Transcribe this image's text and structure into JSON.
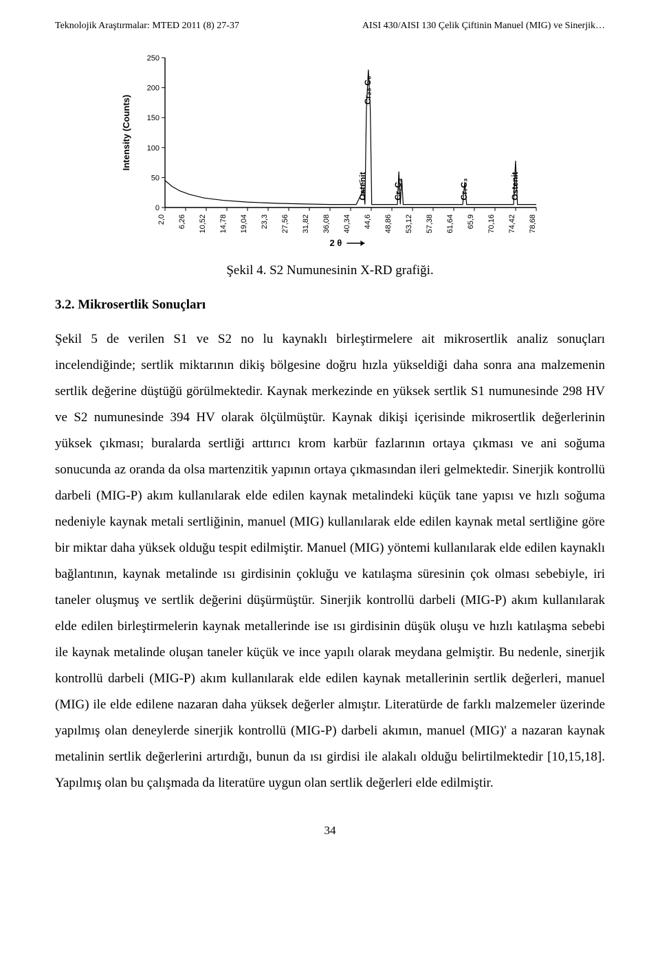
{
  "header": {
    "left": "Teknolojik Araştırmalar: MTED 2011 (8) 27-37",
    "right": "AISI 430/AISI 130 Çelik Çiftinin Manuel (MIG) ve Sinerjik…"
  },
  "chart": {
    "type": "line",
    "ylabel": "Intensity (Counts)",
    "xlabel": "2 θ",
    "xlabel_arrow": "→",
    "ylim": [
      0,
      250
    ],
    "yticks": [
      0,
      50,
      100,
      150,
      200,
      250
    ],
    "xticks": [
      2.0,
      6.26,
      10.52,
      14.78,
      19.04,
      23.3,
      27.56,
      31.82,
      36.08,
      40.34,
      44.6,
      48.86,
      53.12,
      57.38,
      61.64,
      65.9,
      70.16,
      74.42,
      78.68
    ],
    "xtick_labels": [
      "2,0",
      "6,26",
      "10,52",
      "14,78",
      "19,04",
      "23,3",
      "27,56",
      "31,82",
      "36,08",
      "40,34",
      "44,6",
      "48,86",
      "53,12",
      "57,38",
      "61,64",
      "65,9",
      "70,16",
      "74,42",
      "78,68"
    ],
    "data": [
      {
        "x": 2.0,
        "y": 45
      },
      {
        "x": 3.5,
        "y": 35
      },
      {
        "x": 5.0,
        "y": 28
      },
      {
        "x": 7.0,
        "y": 22
      },
      {
        "x": 10.0,
        "y": 16
      },
      {
        "x": 14.0,
        "y": 12
      },
      {
        "x": 19.0,
        "y": 9
      },
      {
        "x": 25.0,
        "y": 7
      },
      {
        "x": 30.0,
        "y": 6
      },
      {
        "x": 36.0,
        "y": 5
      },
      {
        "x": 41.5,
        "y": 5
      },
      {
        "x": 43.0,
        "y": 30
      },
      {
        "x": 43.3,
        "y": 5
      },
      {
        "x": 43.6,
        "y": 165
      },
      {
        "x": 44.0,
        "y": 230
      },
      {
        "x": 44.4,
        "y": 165
      },
      {
        "x": 44.7,
        "y": 5
      },
      {
        "x": 48.0,
        "y": 5
      },
      {
        "x": 50.0,
        "y": 5
      },
      {
        "x": 50.3,
        "y": 60
      },
      {
        "x": 50.6,
        "y": 5
      },
      {
        "x": 50.9,
        "y": 48
      },
      {
        "x": 51.2,
        "y": 5
      },
      {
        "x": 57.0,
        "y": 5
      },
      {
        "x": 63.5,
        "y": 5
      },
      {
        "x": 63.9,
        "y": 42
      },
      {
        "x": 64.3,
        "y": 5
      },
      {
        "x": 70.0,
        "y": 5
      },
      {
        "x": 74.0,
        "y": 5
      },
      {
        "x": 74.4,
        "y": 78
      },
      {
        "x": 74.8,
        "y": 5
      },
      {
        "x": 78.68,
        "y": 5
      }
    ],
    "peaks": [
      {
        "x": 43.0,
        "label": "Ostenit",
        "rotate": true
      },
      {
        "x": 44.0,
        "label": "Cr₂₃ C₆",
        "rotate": true
      },
      {
        "x": 50.3,
        "label": "Cr₇C₃",
        "rotate": true
      },
      {
        "x": 63.9,
        "label": "Cr₇C₃",
        "rotate": true
      },
      {
        "x": 74.4,
        "label": "Ostenit",
        "rotate": true
      }
    ],
    "line_color": "#000000",
    "line_width": 1.2,
    "axis_color": "#000000",
    "background_color": "#ffffff",
    "tick_fontsize": 11,
    "label_fontsize": 13
  },
  "caption": "Şekil 4. S2 Numunesinin X-RD grafiği.",
  "section": {
    "number": "3.2.",
    "title": "Mikrosertlik Sonuçları"
  },
  "paragraph": "Şekil 5 de verilen S1 ve S2 no lu kaynaklı birleştirmelere ait mikrosertlik analiz sonuçları incelendiğinde; sertlik miktarının dikiş bölgesine doğru hızla yükseldiği daha sonra ana malzemenin sertlik değerine düştüğü görülmektedir. Kaynak merkezinde en yüksek sertlik S1 numunesinde 298 HV ve S2 numunesinde 394 HV olarak ölçülmüştür. Kaynak dikişi içerisinde mikrosertlik değerlerinin yüksek çıkması; buralarda sertliği arttırıcı krom karbür fazlarının ortaya çıkması ve ani soğuma sonucunda az oranda da olsa martenzitik yapının ortaya çıkmasından ileri gelmektedir. Sinerjik kontrollü darbeli (MIG-P) akım kullanılarak elde edilen kaynak metalindeki küçük tane yapısı ve hızlı soğuma nedeniyle kaynak metali sertliğinin, manuel (MIG) kullanılarak elde edilen kaynak metal sertliğine göre bir miktar daha yüksek olduğu tespit edilmiştir. Manuel (MIG) yöntemi kullanılarak elde edilen kaynaklı bağlantının, kaynak metalinde ısı girdisinin çokluğu ve katılaşma süresinin çok olması sebebiyle, iri taneler oluşmuş ve sertlik değerini düşürmüştür. Sinerjik kontrollü darbeli (MIG-P) akım kullanılarak elde edilen birleştirmelerin kaynak metallerinde ise ısı girdisinin düşük oluşu ve hızlı katılaşma sebebi ile kaynak metalinde oluşan taneler küçük ve ince yapılı olarak meydana gelmiştir. Bu nedenle, sinerjik kontrollü darbeli (MIG-P) akım kullanılarak elde edilen kaynak metallerinin sertlik değerleri, manuel (MIG) ile elde edilene nazaran daha yüksek değerler almıştır. Literatürde de farklı malzemeler üzerinde yapılmış olan deneylerde sinerjik kontrollü (MIG-P) darbeli akımın, manuel (MIG)' a nazaran kaynak metalinin sertlik değerlerini artırdığı, bunun da ısı girdisi ile alakalı olduğu belirtilmektedir [10,15,18]. Yapılmış olan bu çalışmada da literatüre uygun olan sertlik değerleri elde edilmiştir.",
  "page_number": "34"
}
